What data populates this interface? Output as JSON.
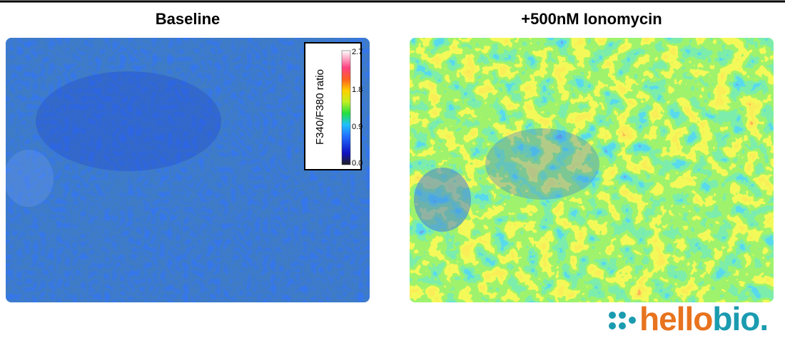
{
  "panels": [
    {
      "title": "Baseline"
    },
    {
      "title": "+500nM Ionomycin"
    }
  ],
  "colorbar": {
    "label": "F340/F380 ratio",
    "ticks": [
      "2.7",
      "1.8",
      "0.9",
      "0.0"
    ]
  },
  "logo": {
    "parts": [
      "hello",
      "bio."
    ]
  }
}
